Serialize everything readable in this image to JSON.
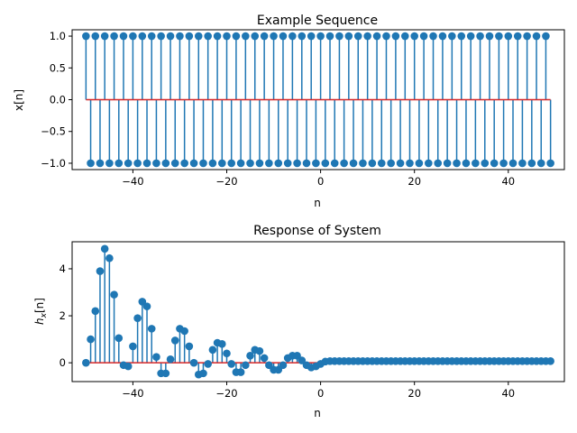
{
  "chart_data": [
    {
      "type": "stem",
      "title": "Example Sequence",
      "xlabel": "n",
      "ylabel": "x[n]",
      "xlim": [
        -52.95,
        51.95
      ],
      "ylim": [
        -1.1,
        1.1
      ],
      "xticks": [
        -40,
        -20,
        0,
        20,
        40
      ],
      "yticks": [
        -1.0,
        -0.5,
        0.0,
        0.5,
        1.0
      ],
      "ytick_labels": [
        "−1.0",
        "−0.5",
        "0.0",
        "0.5",
        "1.0"
      ],
      "xtick_labels": [
        "−40",
        "−20",
        "0",
        "20",
        "40"
      ],
      "x": [
        -50,
        -49,
        -48,
        -47,
        -46,
        -45,
        -44,
        -43,
        -42,
        -41,
        -40,
        -39,
        -38,
        -37,
        -36,
        -35,
        -34,
        -33,
        -32,
        -31,
        -30,
        -29,
        -28,
        -27,
        -26,
        -25,
        -24,
        -23,
        -22,
        -21,
        -20,
        -19,
        -18,
        -17,
        -16,
        -15,
        -14,
        -13,
        -12,
        -11,
        -10,
        -9,
        -8,
        -7,
        -6,
        -5,
        -4,
        -3,
        -2,
        -1,
        0,
        1,
        2,
        3,
        4,
        5,
        6,
        7,
        8,
        9,
        10,
        11,
        12,
        13,
        14,
        15,
        16,
        17,
        18,
        19,
        20,
        21,
        22,
        23,
        24,
        25,
        26,
        27,
        28,
        29,
        30,
        31,
        32,
        33,
        34,
        35,
        36,
        37,
        38,
        39,
        40,
        41,
        42,
        43,
        44,
        45,
        46,
        47,
        48,
        49
      ],
      "y": [
        1,
        -1,
        1,
        -1,
        1,
        -1,
        1,
        -1,
        1,
        -1,
        1,
        -1,
        1,
        -1,
        1,
        -1,
        1,
        -1,
        1,
        -1,
        1,
        -1,
        1,
        -1,
        1,
        -1,
        1,
        -1,
        1,
        -1,
        1,
        -1,
        1,
        -1,
        1,
        -1,
        1,
        -1,
        1,
        -1,
        1,
        -1,
        1,
        -1,
        1,
        -1,
        1,
        -1,
        1,
        -1,
        1,
        -1,
        1,
        -1,
        1,
        -1,
        1,
        -1,
        1,
        -1,
        1,
        -1,
        1,
        -1,
        1,
        -1,
        1,
        -1,
        1,
        -1,
        1,
        -1,
        1,
        -1,
        1,
        -1,
        1,
        -1,
        1,
        -1,
        1,
        -1,
        1,
        -1,
        1,
        -1,
        1,
        -1,
        1,
        -1,
        1,
        -1,
        1,
        -1,
        1,
        -1,
        1,
        -1,
        1,
        -1
      ]
    },
    {
      "type": "stem",
      "title": "Response of System",
      "xlabel": "n",
      "ylabel": "hₓ[n]",
      "ylabel_main": "h",
      "ylabel_sub": "x",
      "ylabel_tail": "[n]",
      "xlim": [
        -52.95,
        51.95
      ],
      "ylim": [
        -0.8,
        5.15
      ],
      "xticks": [
        -40,
        -20,
        0,
        20,
        40
      ],
      "yticks": [
        0,
        2,
        4
      ],
      "ytick_labels": [
        "0",
        "2",
        "4"
      ],
      "xtick_labels": [
        "−40",
        "−20",
        "0",
        "20",
        "40"
      ],
      "x": [
        -50,
        -49,
        -48,
        -47,
        -46,
        -45,
        -44,
        -43,
        -42,
        -41,
        -40,
        -39,
        -38,
        -37,
        -36,
        -35,
        -34,
        -33,
        -32,
        -31,
        -30,
        -29,
        -28,
        -27,
        -26,
        -25,
        -24,
        -23,
        -22,
        -21,
        -20,
        -19,
        -18,
        -17,
        -16,
        -15,
        -14,
        -13,
        -12,
        -11,
        -10,
        -9,
        -8,
        -7,
        -6,
        -5,
        -4,
        -3,
        -2,
        -1,
        0,
        1,
        2,
        3,
        4,
        5,
        6,
        7,
        8,
        9,
        10,
        11,
        12,
        13,
        14,
        15,
        16,
        17,
        18,
        19,
        20,
        21,
        22,
        23,
        24,
        25,
        26,
        27,
        28,
        29,
        30,
        31,
        32,
        33,
        34,
        35,
        36,
        37,
        38,
        39,
        40,
        41,
        42,
        43,
        44,
        45,
        46,
        47,
        48,
        49
      ],
      "y": [
        0.0,
        1.0,
        2.2,
        3.9,
        4.85,
        4.45,
        2.9,
        1.05,
        -0.1,
        -0.15,
        0.7,
        1.9,
        2.6,
        2.4,
        1.45,
        0.25,
        -0.45,
        -0.45,
        0.15,
        0.95,
        1.45,
        1.35,
        0.7,
        0.0,
        -0.5,
        -0.45,
        -0.05,
        0.55,
        0.85,
        0.8,
        0.4,
        -0.05,
        -0.4,
        -0.4,
        -0.1,
        0.3,
        0.55,
        0.5,
        0.2,
        -0.1,
        -0.3,
        -0.3,
        -0.1,
        0.2,
        0.3,
        0.3,
        0.1,
        -0.1,
        -0.2,
        -0.15,
        -0.05,
        0.05,
        0.07,
        0.07,
        0.07,
        0.07,
        0.07,
        0.07,
        0.07,
        0.07,
        0.07,
        0.07,
        0.07,
        0.07,
        0.07,
        0.07,
        0.07,
        0.07,
        0.07,
        0.07,
        0.07,
        0.07,
        0.07,
        0.07,
        0.07,
        0.07,
        0.07,
        0.07,
        0.07,
        0.07,
        0.07,
        0.07,
        0.07,
        0.07,
        0.07,
        0.07,
        0.07,
        0.07,
        0.07,
        0.07,
        0.07,
        0.07,
        0.07,
        0.07,
        0.07,
        0.07,
        0.07,
        0.07,
        0.07,
        0.07
      ]
    }
  ],
  "colors": {
    "stem": "#1f77b4",
    "baseline": "#d62728",
    "frame": "#000000"
  }
}
